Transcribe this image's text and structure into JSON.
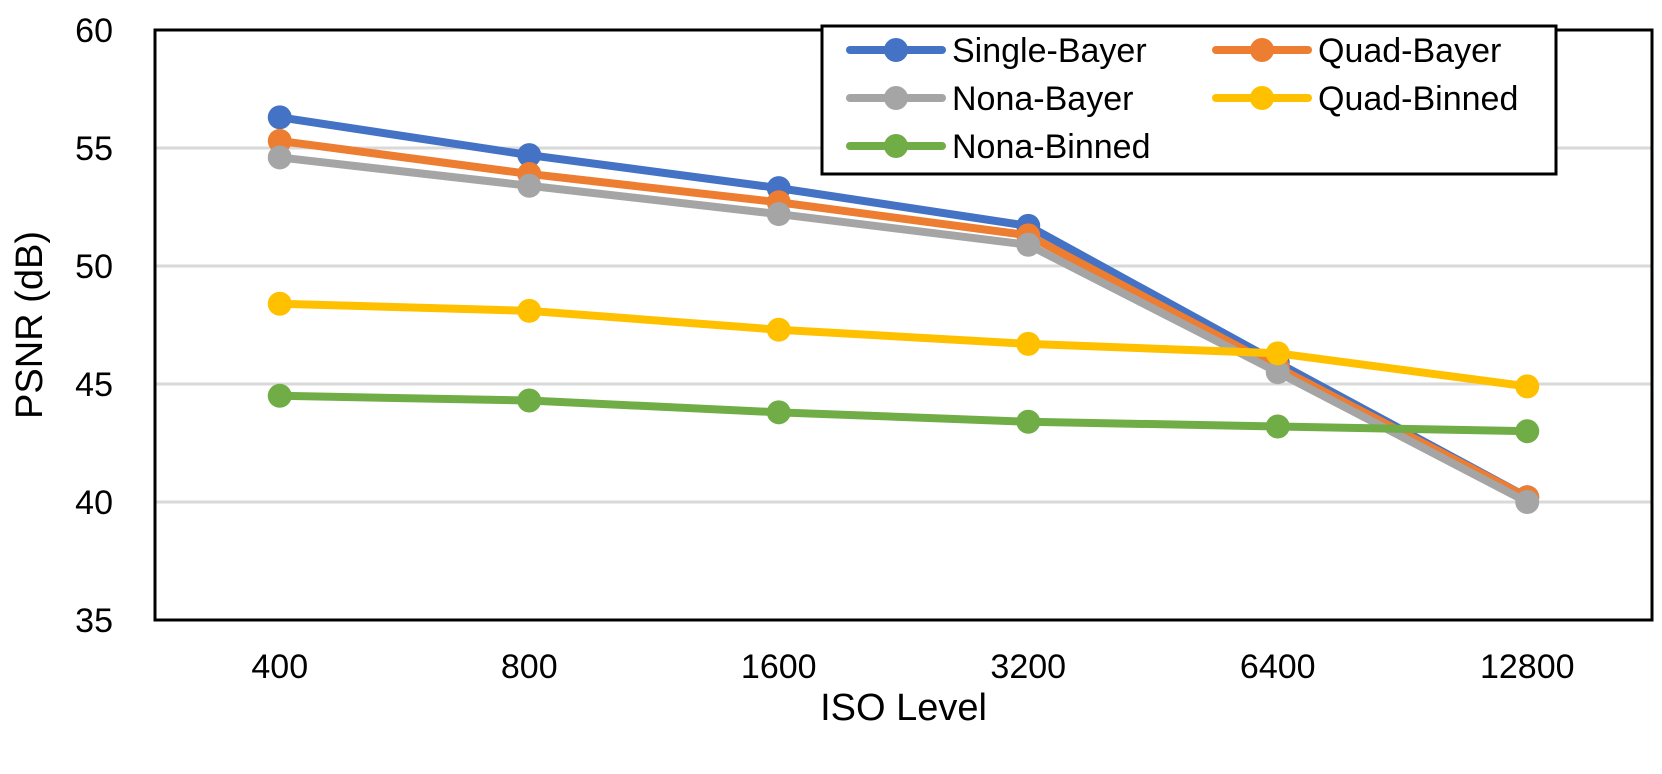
{
  "chart_data": {
    "type": "line",
    "title": "",
    "xlabel": "ISO Level",
    "ylabel": "PSNR (dB)",
    "categories": [
      "400",
      "800",
      "1600",
      "3200",
      "6400",
      "12800"
    ],
    "ylim": [
      35,
      60
    ],
    "yticks": [
      35,
      40,
      45,
      50,
      55,
      60
    ],
    "grid": true,
    "legend_position": "top-right",
    "series": [
      {
        "name": "Single-Bayer",
        "color": "#4472C4",
        "values": [
          56.3,
          54.7,
          53.3,
          51.7,
          45.9,
          40.2
        ]
      },
      {
        "name": "Quad-Bayer",
        "color": "#ED7D31",
        "values": [
          55.3,
          53.9,
          52.7,
          51.3,
          45.7,
          40.2
        ]
      },
      {
        "name": "Nona-Bayer",
        "color": "#A5A5A5",
        "values": [
          54.6,
          53.4,
          52.2,
          50.9,
          45.5,
          40.0
        ]
      },
      {
        "name": "Quad-Binned",
        "color": "#FFC000",
        "values": [
          48.4,
          48.1,
          47.3,
          46.7,
          46.3,
          44.9
        ]
      },
      {
        "name": "Nona-Binned",
        "color": "#70AD47",
        "values": [
          44.5,
          44.3,
          43.8,
          43.4,
          43.2,
          43.0
        ]
      }
    ]
  }
}
